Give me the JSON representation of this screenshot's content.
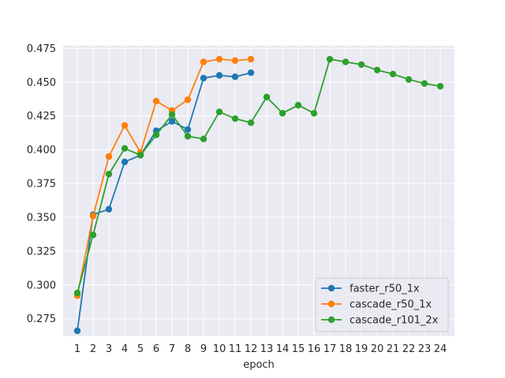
{
  "chart_data": {
    "type": "line",
    "title": "",
    "xlabel": "epoch",
    "ylabel": "",
    "x_ticks": [
      "1",
      "2",
      "3",
      "4",
      "5",
      "6",
      "7",
      "8",
      "9",
      "10",
      "11",
      "12",
      "13",
      "14",
      "15",
      "16",
      "17",
      "18",
      "19",
      "20",
      "21",
      "22",
      "23",
      "24"
    ],
    "y_ticks": [
      "0.275",
      "0.300",
      "0.325",
      "0.350",
      "0.375",
      "0.400",
      "0.425",
      "0.450",
      "0.475"
    ],
    "xlim": [
      0.1,
      24.9
    ],
    "ylim": [
      0.262,
      0.477
    ],
    "grid": true,
    "legend_position": "lower-right",
    "series": [
      {
        "name": "faster_r50_1x",
        "color": "#1f77b4",
        "x": [
          1,
          2,
          3,
          4,
          5,
          6,
          7,
          8,
          9,
          10,
          11,
          12
        ],
        "values": [
          0.266,
          0.352,
          0.356,
          0.391,
          0.396,
          0.414,
          0.421,
          0.415,
          0.453,
          0.455,
          0.454,
          0.457
        ]
      },
      {
        "name": "cascade_r50_1x",
        "color": "#ff7f0e",
        "x": [
          1,
          2,
          3,
          4,
          5,
          6,
          7,
          8,
          9,
          10,
          11,
          12
        ],
        "values": [
          0.292,
          0.351,
          0.395,
          0.418,
          0.398,
          0.436,
          0.429,
          0.437,
          0.465,
          0.467,
          0.466,
          0.467
        ]
      },
      {
        "name": "cascade_r101_2x",
        "color": "#2ca02c",
        "x": [
          1,
          2,
          3,
          4,
          5,
          6,
          7,
          8,
          9,
          10,
          11,
          12,
          13,
          14,
          15,
          16,
          17,
          18,
          19,
          20,
          21,
          22,
          23,
          24
        ],
        "values": [
          0.294,
          0.337,
          0.382,
          0.401,
          0.396,
          0.411,
          0.426,
          0.41,
          0.408,
          0.428,
          0.423,
          0.42,
          0.439,
          0.427,
          0.433,
          0.427,
          0.467,
          0.465,
          0.463,
          0.459,
          0.456,
          0.452,
          0.449,
          0.447
        ]
      }
    ]
  }
}
